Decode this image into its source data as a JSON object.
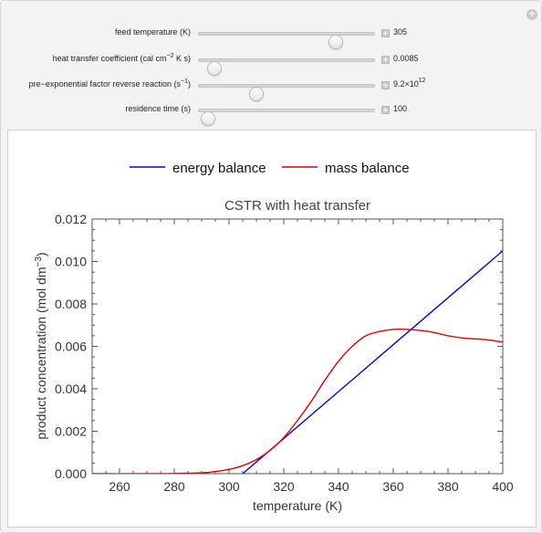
{
  "controls": [
    {
      "label": "feed temperature (K)",
      "value": "305",
      "position": 0.78
    },
    {
      "label_pre": "heat transfer coefficient (cal cm",
      "label_sup": "−2",
      "label_post": " K s)",
      "value": "0.0085",
      "position": 0.09
    },
    {
      "label_pre": "pre−exponential factor reverse reaction (s",
      "label_sup": "−1",
      "label_post": ")",
      "value_pre": "9.2×10",
      "value_sup": "12",
      "position": 0.33
    },
    {
      "label": "residence time (s)",
      "value": "100",
      "position": 0.05
    }
  ],
  "chart_data": {
    "type": "line",
    "title": "CSTR with heat transfer",
    "xlabel": "temperature (K)",
    "ylabel_pre": "product concentration (mol dm",
    "ylabel_sup": "−3",
    "ylabel_post": ")",
    "xlim": [
      250,
      400
    ],
    "ylim": [
      0,
      0.012
    ],
    "xticks": [
      260,
      280,
      300,
      320,
      340,
      360,
      380,
      400
    ],
    "xtick_labels": [
      "260",
      "280",
      "300",
      "320",
      "340",
      "360",
      "380",
      "400"
    ],
    "yticks": [
      0,
      0.002,
      0.004,
      0.006,
      0.008,
      0.01,
      0.012
    ],
    "ytick_labels": [
      "0.000",
      "0.002",
      "0.004",
      "0.006",
      "0.008",
      "0.010",
      "0.012"
    ],
    "legend_position": "top-center",
    "series": [
      {
        "name": "energy balance",
        "color": "#0000dd",
        "x": [
          305,
          400
        ],
        "y": [
          0.0,
          0.0105
        ]
      },
      {
        "name": "mass balance",
        "color": "#dd0000",
        "x": [
          250,
          270,
          280,
          290,
          295,
          300,
          305,
          310,
          315,
          320,
          325,
          330,
          335,
          340,
          345,
          350,
          355,
          360,
          365,
          370,
          375,
          380,
          385,
          390,
          395,
          400
        ],
        "y": [
          0.0,
          0.0,
          1e-05,
          4e-05,
          0.0001,
          0.0002,
          0.00038,
          0.00066,
          0.0011,
          0.0017,
          0.0025,
          0.0034,
          0.0044,
          0.0053,
          0.006,
          0.0065,
          0.0067,
          0.0068,
          0.0068,
          0.00675,
          0.00665,
          0.0065,
          0.0064,
          0.00635,
          0.0063,
          0.0062
        ]
      }
    ]
  }
}
